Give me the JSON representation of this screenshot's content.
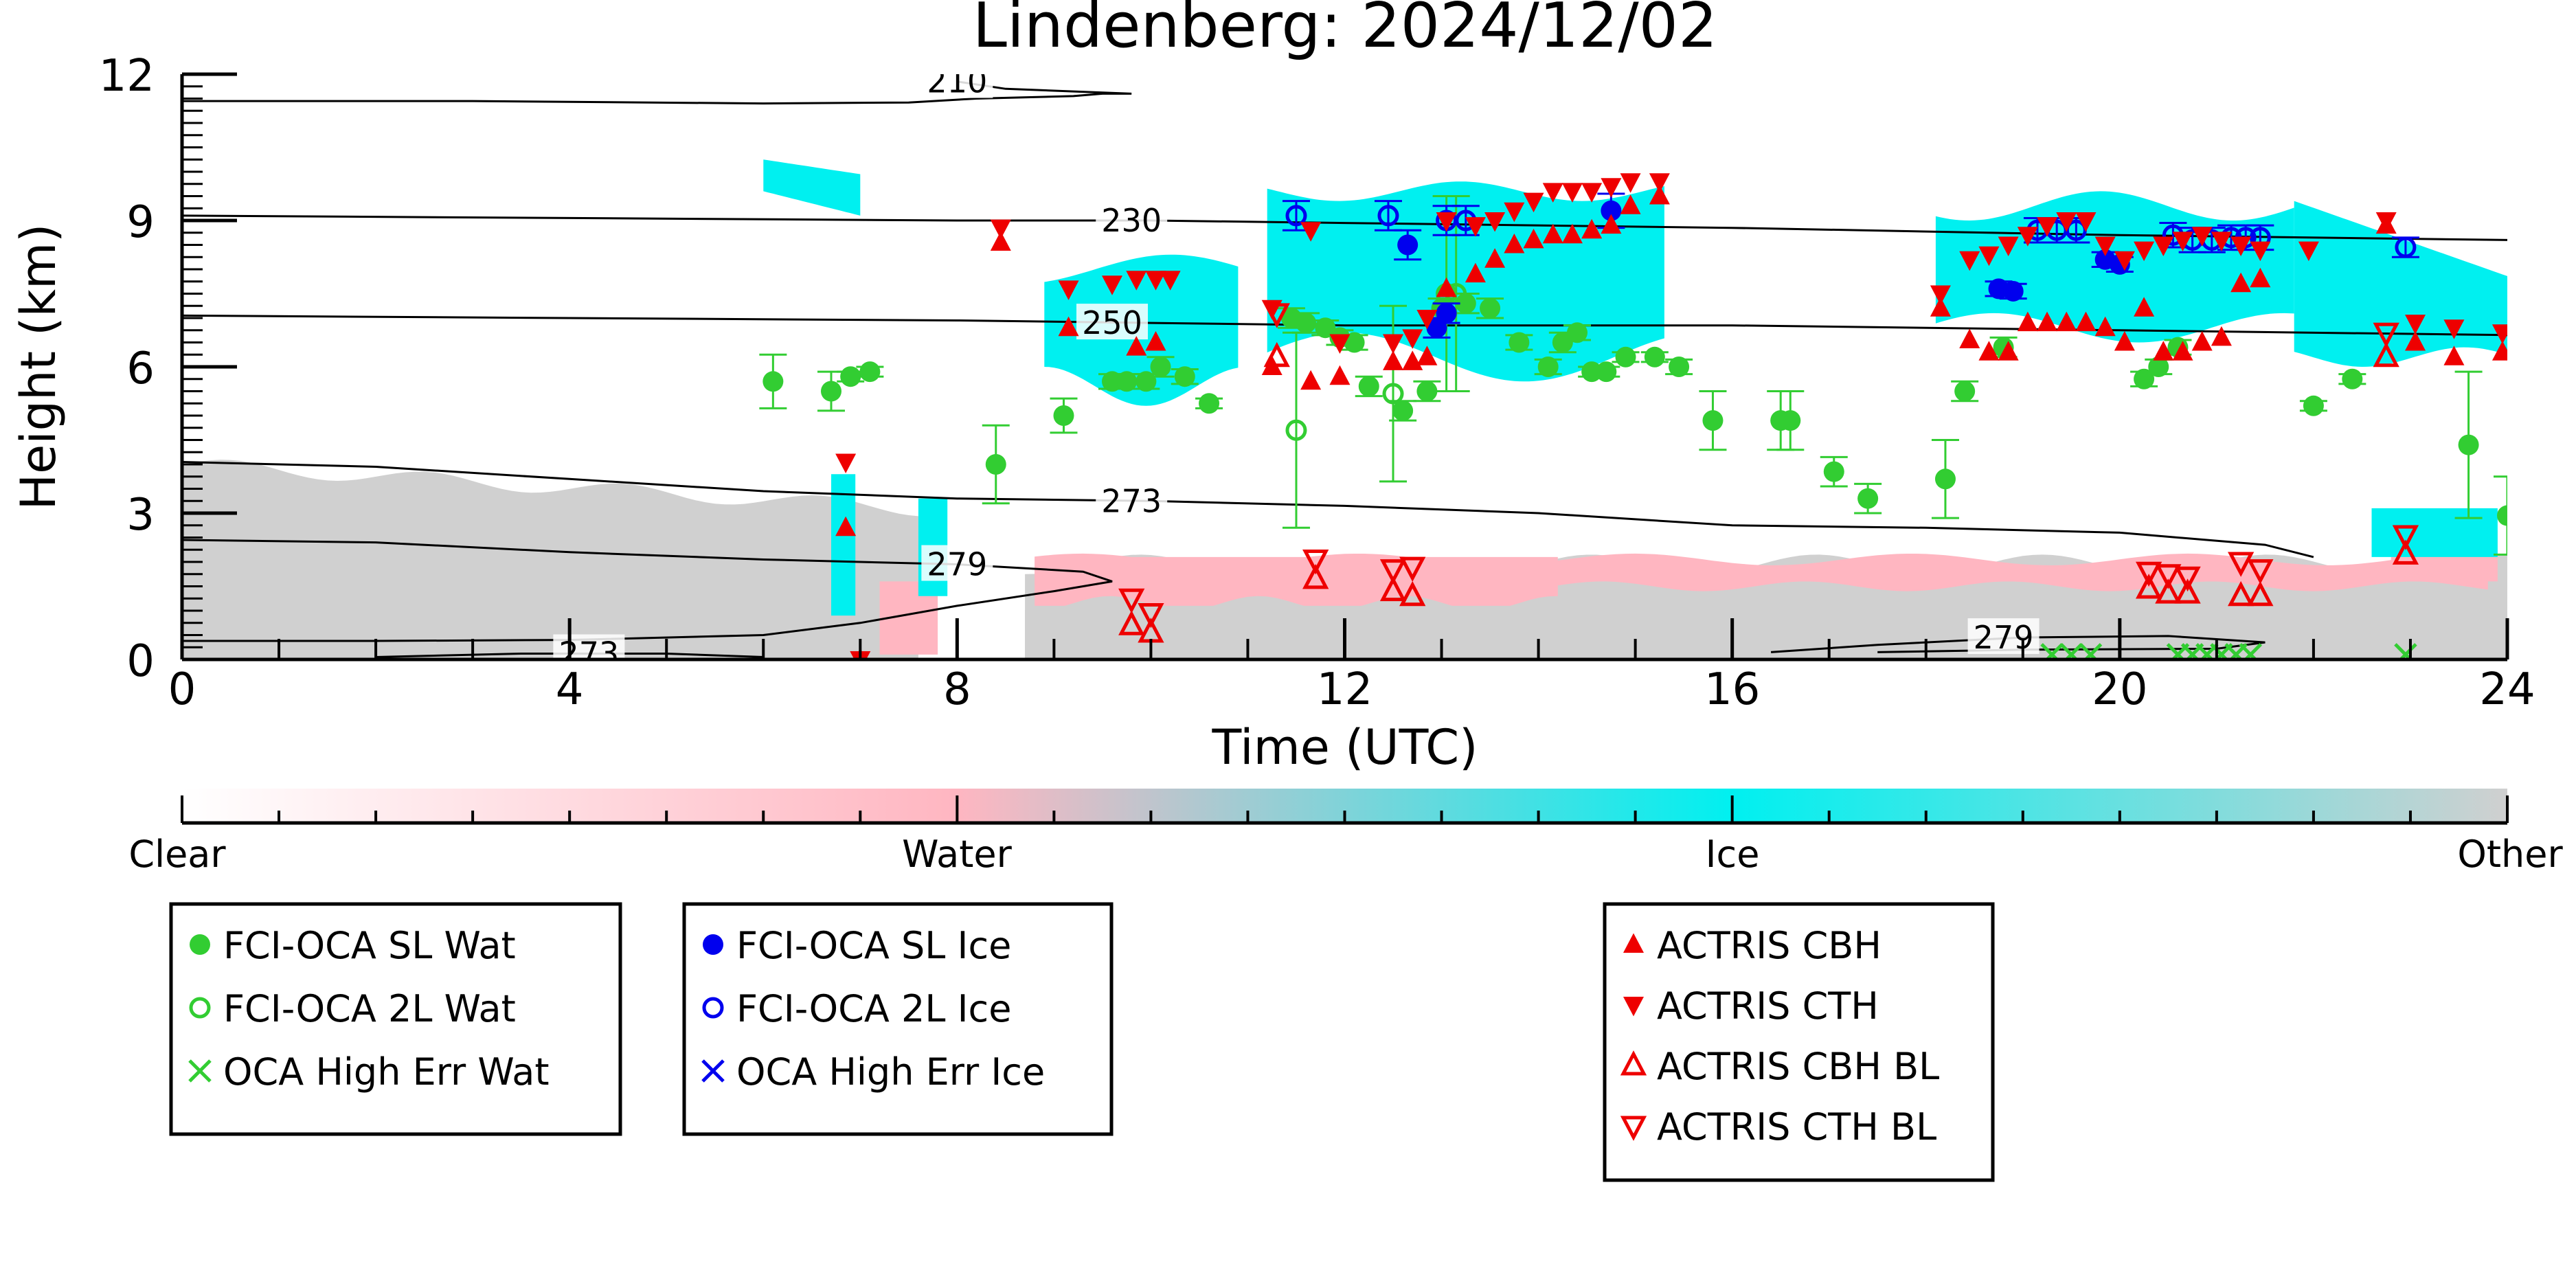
{
  "chart_data": {
    "type": "scatter",
    "title": "Lindenberg: 2024/12/02",
    "xlabel": "Time (UTC)",
    "ylabel": "Height (km)",
    "xlim": [
      0,
      24
    ],
    "ylim": [
      0,
      12
    ],
    "x_ticks": [
      "0",
      "4",
      "8",
      "12",
      "16",
      "20",
      "24"
    ],
    "y_ticks": [
      "0",
      "3",
      "6",
      "9",
      "12"
    ],
    "grid": false,
    "background": "cloud classification curtain (clear / water / ice / other)",
    "colorbar": {
      "labels": [
        "Clear",
        "Water",
        "Ice",
        "Other"
      ],
      "colors": [
        "#ffffff",
        "#ffb6c1",
        "#00f0f0",
        "#d0d0d0"
      ]
    },
    "temperature_contours": [
      {
        "label": "210",
        "points": [
          [
            0,
            11.45
          ],
          [
            3,
            11.45
          ],
          [
            6,
            11.4
          ],
          [
            7.5,
            11.42
          ],
          [
            8.2,
            11.5
          ],
          [
            9.2,
            11.55
          ],
          [
            9.5,
            11.6
          ],
          [
            9.8,
            11.6
          ],
          [
            8.5,
            11.7
          ],
          [
            8,
            11.85
          ]
        ]
      },
      {
        "label": "230",
        "points": [
          [
            0,
            9.1
          ],
          [
            4,
            9.05
          ],
          [
            8,
            9.0
          ],
          [
            10,
            9.0
          ],
          [
            12,
            8.95
          ],
          [
            16,
            8.85
          ],
          [
            20,
            8.7
          ],
          [
            24,
            8.6
          ]
        ]
      },
      {
        "label": "250",
        "points": [
          [
            0,
            7.05
          ],
          [
            4,
            7.0
          ],
          [
            8,
            6.95
          ],
          [
            10,
            6.9
          ],
          [
            12,
            6.85
          ],
          [
            16,
            6.85
          ],
          [
            20,
            6.75
          ],
          [
            24,
            6.65
          ]
        ]
      },
      {
        "label": "273",
        "points": [
          [
            0,
            4.05
          ],
          [
            2,
            3.95
          ],
          [
            4,
            3.7
          ],
          [
            6,
            3.45
          ],
          [
            8,
            3.3
          ],
          [
            10,
            3.25
          ],
          [
            12,
            3.15
          ],
          [
            14,
            3.0
          ],
          [
            16,
            2.75
          ],
          [
            18,
            2.7
          ],
          [
            20,
            2.6
          ],
          [
            21.5,
            2.35
          ],
          [
            22,
            2.1
          ]
        ]
      },
      {
        "label": "279",
        "points": [
          [
            0,
            2.45
          ],
          [
            2,
            2.4
          ],
          [
            4,
            2.2
          ],
          [
            6,
            2.05
          ],
          [
            8,
            1.95
          ],
          [
            9.3,
            1.8
          ],
          [
            9.6,
            1.6
          ],
          [
            9,
            1.4
          ],
          [
            8,
            1.1
          ],
          [
            7,
            0.75
          ],
          [
            6,
            0.5
          ],
          [
            4,
            0.4
          ],
          [
            2,
            0.38
          ],
          [
            0,
            0.38
          ]
        ]
      },
      {
        "label": "279",
        "points": [
          [
            16.4,
            0.15
          ],
          [
            17.5,
            0.3
          ],
          [
            19,
            0.45
          ],
          [
            20.5,
            0.48
          ],
          [
            21.5,
            0.35
          ],
          [
            21,
            0.22
          ],
          [
            19,
            0.2
          ],
          [
            17.5,
            0.15
          ]
        ]
      },
      {
        "label": "273",
        "points": [
          [
            2,
            0.05
          ],
          [
            3.5,
            0.12
          ],
          [
            5,
            0.12
          ],
          [
            6,
            0.05
          ]
        ]
      }
    ],
    "series": [
      {
        "name": "FCI-OCA SL Wat",
        "color": "#32cd32",
        "marker": "filled-circle",
        "x": [
          6.1,
          6.7,
          6.9,
          7.1,
          8.4,
          9.1,
          9.6,
          9.75,
          9.95,
          10.1,
          10.35,
          10.6,
          11.45,
          11.6,
          11.8,
          11.95,
          12.1,
          12.25,
          12.6,
          12.85,
          13,
          13.25,
          13.5,
          13.8,
          14.1,
          14.25,
          14.4,
          14.55,
          14.7,
          14.9,
          15.2,
          15.45,
          15.8,
          16.5,
          16.6,
          17.05,
          17.4,
          18.2,
          18.4,
          18.8,
          20.25,
          20.4,
          20.6,
          22,
          22.4,
          23.6,
          24
        ],
        "y": [
          5.7,
          5.5,
          5.8,
          5.9,
          4.0,
          5.0,
          5.7,
          5.7,
          5.7,
          6.0,
          5.8,
          5.25,
          7.0,
          6.9,
          6.8,
          6.6,
          6.5,
          5.6,
          5.1,
          5.5,
          7.2,
          7.3,
          7.2,
          6.5,
          6.0,
          6.5,
          6.7,
          5.9,
          5.9,
          6.2,
          6.2,
          6.0,
          4.9,
          4.9,
          4.9,
          3.85,
          3.3,
          3.7,
          5.5,
          6.4,
          5.75,
          6.0,
          6.4,
          5.2,
          5.75,
          4.4,
          2.95
        ],
        "yerr": [
          0.55,
          0.4,
          0.1,
          0.1,
          0.8,
          0.35,
          0.15,
          0.15,
          0.15,
          0.2,
          0.15,
          0.1,
          0.2,
          0.2,
          0.15,
          0.15,
          0.15,
          0.2,
          0.2,
          0.2,
          0.2,
          0.2,
          0.2,
          0.15,
          0.15,
          0.2,
          0.15,
          0.1,
          0.1,
          0.1,
          0.1,
          0.15,
          0.6,
          0.6,
          0.6,
          0.3,
          0.3,
          0.8,
          0.2,
          0.2,
          0.15,
          0.15,
          0.15,
          0.1,
          0.1,
          1.5,
          0.8
        ]
      },
      {
        "name": "FCI-OCA 2L Wat",
        "color": "#32cd32",
        "marker": "open-circle",
        "x": [
          11.5,
          12.5,
          13.05,
          13.15
        ],
        "y": [
          4.7,
          5.45,
          7.5,
          7.5
        ],
        "yerr": [
          2.0,
          1.8,
          2.0,
          2.0
        ]
      },
      {
        "name": "OCA High Err Wat",
        "color": "#32cd32",
        "marker": "x",
        "x": [
          19.3,
          19.5,
          19.7,
          20.6,
          20.75,
          20.9,
          21.05,
          21.2,
          21.35,
          22.95
        ],
        "y": [
          0.1,
          0.1,
          0.1,
          0.1,
          0.1,
          0.1,
          0.1,
          0.1,
          0.1,
          0.1
        ],
        "yerr": []
      },
      {
        "name": "FCI-OCA SL Ice",
        "color": "#0000ee",
        "marker": "filled-circle",
        "x": [
          12.65,
          12.95,
          13.05,
          14.75,
          18.75,
          18.9,
          19.85,
          20.0
        ],
        "y": [
          8.5,
          6.8,
          7.1,
          9.2,
          7.6,
          7.55,
          8.2,
          8.1
        ],
        "yerr": [
          0.3,
          0.2,
          0.2,
          0.35,
          0.15,
          0.15,
          0.15,
          0.15
        ]
      },
      {
        "name": "FCI-OCA 2L Ice",
        "color": "#0000ee",
        "marker": "open-circle",
        "x": [
          11.5,
          12.45,
          13.05,
          13.25,
          19.15,
          19.35,
          19.55,
          20.55,
          20.75,
          20.95,
          21.15,
          21.3,
          21.45,
          22.95
        ],
        "y": [
          9.1,
          9.1,
          9.0,
          9.0,
          8.8,
          8.8,
          8.8,
          8.7,
          8.6,
          8.6,
          8.65,
          8.65,
          8.65,
          8.45
        ],
        "yerr": [
          0.3,
          0.3,
          0.3,
          0.3,
          0.25,
          0.25,
          0.25,
          0.25,
          0.25,
          0.25,
          0.25,
          0.25,
          0.25,
          0.2
        ]
      },
      {
        "name": "OCA High Err Ice",
        "color": "#0000ee",
        "marker": "x",
        "x": [],
        "y": [],
        "yerr": []
      },
      {
        "name": "ACTRIS CBH",
        "color": "#ee0000",
        "marker": "triangle-up",
        "x": [
          6.85,
          7.0,
          8.45,
          9.15,
          9.85,
          10.05,
          11.25,
          11.65,
          11.95,
          12.5,
          12.7,
          12.85,
          13.05,
          13.35,
          13.55,
          13.75,
          13.95,
          14.15,
          14.35,
          14.55,
          14.75,
          14.95,
          15.25,
          18.15,
          18.45,
          18.65,
          18.85,
          19.05,
          19.25,
          19.45,
          19.65,
          19.85,
          20.05,
          20.25,
          20.45,
          20.65,
          20.85,
          21.05,
          21.25,
          21.45,
          22.75,
          23.05,
          23.45,
          23.95
        ],
        "y": [
          2.7,
          0.0,
          8.55,
          6.8,
          6.4,
          6.5,
          6.0,
          5.7,
          5.8,
          6.1,
          6.1,
          6.2,
          7.6,
          7.9,
          8.2,
          8.5,
          8.6,
          8.7,
          8.7,
          8.8,
          8.9,
          9.3,
          9.5,
          7.2,
          6.55,
          6.3,
          6.3,
          6.9,
          6.9,
          6.9,
          6.9,
          6.8,
          6.5,
          7.2,
          6.3,
          6.3,
          6.5,
          6.6,
          7.7,
          7.8,
          8.9,
          6.5,
          6.2,
          6.3
        ],
        "yerr": []
      },
      {
        "name": "ACTRIS CTH",
        "color": "#ee0000",
        "marker": "triangle-down",
        "x": [
          6.85,
          7.0,
          8.45,
          9.15,
          9.6,
          9.85,
          10.05,
          10.2,
          11.25,
          11.65,
          11.95,
          12.5,
          12.7,
          12.85,
          13.05,
          13.35,
          13.55,
          13.75,
          13.95,
          14.15,
          14.35,
          14.55,
          14.75,
          14.95,
          15.25,
          18.15,
          18.45,
          18.65,
          18.85,
          19.05,
          19.25,
          19.45,
          19.65,
          19.85,
          20.05,
          20.25,
          20.45,
          20.65,
          20.85,
          21.05,
          21.25,
          21.45,
          21.95,
          22.75,
          23.05,
          23.45,
          23.95
        ],
        "y": [
          4.05,
          0.0,
          8.85,
          7.6,
          7.7,
          7.8,
          7.8,
          7.8,
          7.2,
          8.8,
          6.5,
          6.5,
          6.6,
          7.0,
          9.0,
          8.9,
          9.0,
          9.2,
          9.4,
          9.6,
          9.6,
          9.6,
          9.7,
          9.8,
          9.8,
          7.5,
          8.2,
          8.3,
          8.5,
          8.7,
          8.9,
          9.0,
          9.0,
          8.5,
          8.2,
          8.4,
          8.5,
          8.6,
          8.7,
          8.6,
          8.5,
          8.4,
          8.4,
          9.0,
          6.9,
          6.8,
          6.7
        ],
        "yerr": []
      },
      {
        "name": "ACTRIS CBH BL",
        "color": "#ee0000",
        "marker": "open-triangle-up",
        "x": [
          9.8,
          10.0,
          11.3,
          11.7,
          12.5,
          12.7,
          20.3,
          20.5,
          20.7,
          21.25,
          21.45,
          22.75,
          22.95
        ],
        "y": [
          0.7,
          0.55,
          6.2,
          1.65,
          1.4,
          1.3,
          1.45,
          1.35,
          1.35,
          1.3,
          1.3,
          6.2,
          2.15
        ],
        "yerr": []
      },
      {
        "name": "ACTRIS CTH BL",
        "color": "#ee0000",
        "marker": "open-triangle-down",
        "x": [
          9.8,
          10.0,
          11.3,
          11.7,
          12.5,
          12.7,
          20.3,
          20.5,
          20.7,
          21.25,
          21.45,
          22.75,
          22.95
        ],
        "y": [
          1.25,
          0.95,
          7.1,
          2.05,
          1.85,
          1.9,
          1.8,
          1.75,
          1.7,
          2.0,
          1.85,
          6.7,
          2.55
        ],
        "yerr": []
      }
    ],
    "legend_boxes": [
      [
        "FCI-OCA SL Wat",
        "FCI-OCA 2L Wat",
        "OCA High Err Wat"
      ],
      [
        "FCI-OCA SL Ice",
        "FCI-OCA 2L Ice",
        "OCA High Err Ice"
      ],
      [
        "ACTRIS CBH",
        "ACTRIS CTH",
        "ACTRIS CBH BL",
        "ACTRIS CTH BL"
      ]
    ]
  }
}
